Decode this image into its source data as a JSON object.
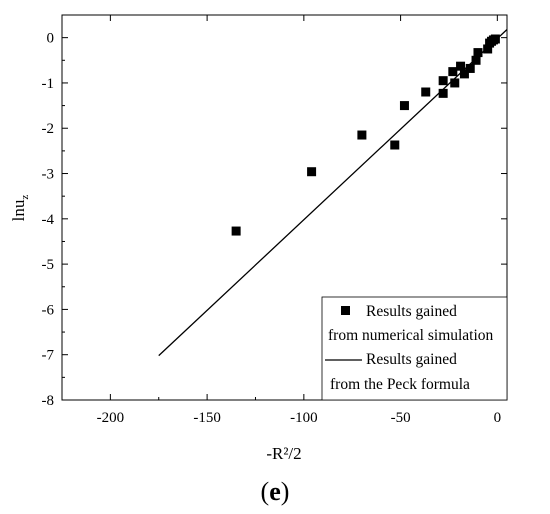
{
  "chart_data": {
    "type": "scatter",
    "xlabel": "-R²/2",
    "ylabel": "lnu",
    "ylabel_subscript": "z",
    "panel_label_open": "(",
    "panel_label_letter": "e",
    "panel_label_close": ")",
    "xlim": [
      -225,
      5
    ],
    "ylim": [
      -8,
      0.5
    ],
    "x_ticks": [
      -200,
      -150,
      -100,
      -50,
      0
    ],
    "y_ticks": [
      0,
      -1,
      -2,
      -3,
      -4,
      -5,
      -6,
      -7,
      -8
    ],
    "legend_position": "bottom-right",
    "series": [
      {
        "name_line1": "Results gained",
        "name_line2": "from numerical simulation",
        "kind": "points",
        "marker": "square",
        "color": "#000000",
        "points": [
          {
            "x": -135,
            "y": -4.27
          },
          {
            "x": -96,
            "y": -2.96
          },
          {
            "x": -70,
            "y": -2.15
          },
          {
            "x": -53,
            "y": -2.37
          },
          {
            "x": -48,
            "y": -1.5
          },
          {
            "x": -37,
            "y": -1.2
          },
          {
            "x": -28,
            "y": -0.95
          },
          {
            "x": -28,
            "y": -1.23
          },
          {
            "x": -23,
            "y": -0.75
          },
          {
            "x": -22,
            "y": -1.0
          },
          {
            "x": -19,
            "y": -0.63
          },
          {
            "x": -17,
            "y": -0.8
          },
          {
            "x": -14,
            "y": -0.68
          },
          {
            "x": -11,
            "y": -0.5
          },
          {
            "x": -10,
            "y": -0.33
          },
          {
            "x": -5,
            "y": -0.25
          },
          {
            "x": -4,
            "y": -0.12
          },
          {
            "x": -3,
            "y": -0.08
          },
          {
            "x": -2,
            "y": -0.05
          },
          {
            "x": -1,
            "y": -0.03
          }
        ]
      },
      {
        "name_line1": "Results gained",
        "name_line2": "from the Peck formula",
        "kind": "line",
        "color": "#000000",
        "points": [
          {
            "x": -175,
            "y": -7.02
          },
          {
            "x": 5,
            "y": 0.18
          }
        ]
      }
    ]
  }
}
